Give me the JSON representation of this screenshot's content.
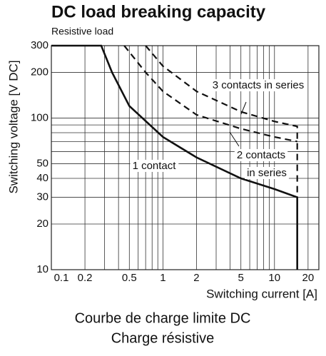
{
  "chart_data": {
    "type": "line",
    "title": "DC load breaking capacity",
    "subtitle": "Resistive load",
    "x_label": "Switching current [A]",
    "y_label": "Switching voltage [V DC]",
    "caption": [
      "Courbe de charge limite DC",
      "Charge résistive"
    ],
    "log_x": true,
    "log_y": true,
    "grid": true,
    "xlim": [
      0.1,
      25
    ],
    "ylim": [
      10,
      300
    ],
    "xticks": [
      0.1,
      0.2,
      0.5,
      1,
      2,
      5,
      10,
      20
    ],
    "minor_xticks": [
      0.3,
      0.4,
      0.6,
      0.7,
      0.8,
      0.9,
      3,
      4,
      6,
      7,
      8,
      9
    ],
    "yticks": [
      10,
      20,
      30,
      40,
      50,
      100,
      200,
      300
    ],
    "minor_yticks": [
      60,
      70,
      80,
      90
    ],
    "series": [
      {
        "label_lines": [
          "1 contact"
        ],
        "color": "#111111",
        "style": "solid",
        "x": [
          0.1,
          0.28,
          0.35,
          0.5,
          1,
          2,
          5,
          10,
          16,
          16
        ],
        "y": [
          300,
          300,
          200,
          120,
          75,
          55,
          40,
          34,
          30,
          10
        ]
      },
      {
        "label_lines": [
          "2 contacts",
          "in series"
        ],
        "color": "#111111",
        "style": "dashed",
        "x": [
          0.45,
          0.7,
          1,
          2,
          5,
          10,
          16
        ],
        "y": [
          300,
          200,
          150,
          105,
          85,
          75,
          70
        ]
      },
      {
        "label_lines": [
          "3 contacts in series"
        ],
        "color": "#111111",
        "style": "dashed",
        "x": [
          0.7,
          1,
          2,
          5,
          10,
          16,
          16
        ],
        "y": [
          300,
          220,
          150,
          110,
          95,
          88,
          30
        ]
      }
    ]
  }
}
